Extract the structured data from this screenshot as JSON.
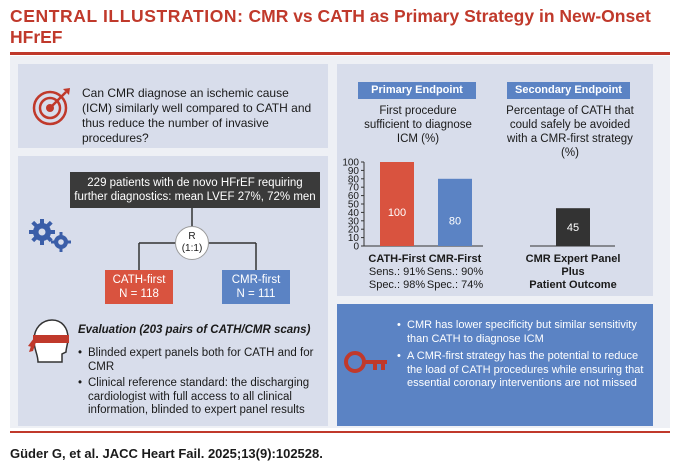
{
  "header": {
    "label": "CENTRAL ILLUSTRATION:",
    "title": "CMR vs CATH as Primary Strategy in New-Onset HFrEF"
  },
  "question": {
    "text": "Can CMR diagnose an ischemic cause (ICM) similarly well compared to CATH and thus reduce the number of invasive procedures?",
    "icon": "target-icon"
  },
  "study": {
    "patients": "229 patients with de novo HFrEF requiring further diagnostics: mean LVEF 27%, 72% men",
    "randomization_line1": "R",
    "randomization_line2": "(1:1)",
    "arm_cath_name": "CATH-first",
    "arm_cath_n": "N = 118",
    "arm_cmr_name": "CMR-first",
    "arm_cmr_n": "N = 111",
    "icon": "gears-icon"
  },
  "evaluation": {
    "title": "Evaluation (203 pairs of CATH/CMR scans)",
    "items": [
      "Blinded expert panels both for CATH and for CMR",
      "Clinical reference standard: the discharging cardiologist with full access to all clinical information, blinded to expert panel results"
    ],
    "icon": "blindfold-icon"
  },
  "endpoints": {
    "primary_tag": "Primary Endpoint",
    "primary_desc": "First procedure sufficient to diagnose ICM (%)",
    "secondary_tag": "Secondary Endpoint",
    "secondary_desc": "Percentage of CATH that could safely be avoided with a CMR-first strategy (%)"
  },
  "chart_data": [
    {
      "type": "bar",
      "categories": [
        "CATH-First",
        "CMR-First"
      ],
      "values": [
        100,
        80
      ],
      "data_labels": [
        "100",
        "80"
      ],
      "sublabels": [
        [
          "Sens.: 91%",
          "Spec.: 98%"
        ],
        [
          "Sens.: 90%",
          "Spec.: 74%"
        ]
      ],
      "ylim": [
        0,
        100
      ],
      "yticks": [
        0,
        10,
        20,
        30,
        40,
        50,
        60,
        70,
        80,
        90,
        100
      ],
      "colors": [
        "#d9533f",
        "#5b83c4"
      ],
      "grid": false
    },
    {
      "type": "bar",
      "categories": [
        "CMR Expert Panel Plus Patient Outcome"
      ],
      "category_lines": [
        [
          "CMR Expert Panel",
          "Plus",
          "Patient Outcome"
        ]
      ],
      "values": [
        45
      ],
      "data_labels": [
        "45"
      ],
      "ylim": [
        0,
        100
      ],
      "colors": [
        "#333333"
      ],
      "grid": false
    }
  ],
  "key_points": [
    "CMR has lower specificity but similar sensitivity than CATH to diagnose ICM",
    "A CMR-first strategy has the potential to reduce the load of CATH procedures while ensuring that essential coronary interventions are not missed"
  ],
  "key_icon": "key-icon",
  "citation": "Güder G, et al. JACC Heart Fail. 2025;13(9):102528.",
  "colors": {
    "accent": "#c0392b",
    "cath": "#d9533f",
    "cmr": "#5b83c4",
    "dark": "#333333",
    "panel": "#d8ddeb"
  }
}
